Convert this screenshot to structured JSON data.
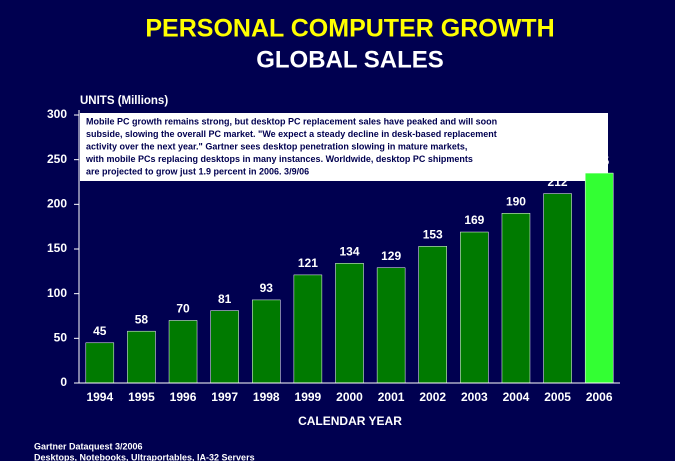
{
  "chart_data": {
    "type": "bar",
    "title": "PERSONAL COMPUTER GROWTH",
    "subtitle": "GLOBAL SALES",
    "y_label": "UNITS (Millions)",
    "x_label": "CALENDAR YEAR",
    "note_lines": [
      "Mobile PC growth remains strong, but desktop PC replacement sales have peaked and will soon",
      "subside, slowing the overall PC market. \"We expect a steady decline in desk-based replacement",
      "activity over the next year.\"  Gartner sees desktop penetration slowing in mature markets,",
      "with mobile PCs replacing desktops in many instances. Worldwide, desktop PC shipments",
      "are projected to grow just 1.9 percent in 2006.  3/9/06"
    ],
    "footer_lines": [
      "Gartner Dataquest 3/2006",
      "Desktops, Notebooks, Ultraportables, IA-32 Servers"
    ],
    "categories": [
      "1994",
      "1995",
      "1996",
      "1997",
      "1998",
      "1999",
      "2000",
      "2001",
      "2002",
      "2003",
      "2004",
      "2005",
      "2006"
    ],
    "values": [
      45,
      58,
      70,
      81,
      93,
      121,
      134,
      129,
      153,
      169,
      190,
      212,
      235
    ],
    "colors": [
      "#007a00",
      "#007a00",
      "#007a00",
      "#007a00",
      "#007a00",
      "#007a00",
      "#007a00",
      "#007a00",
      "#007a00",
      "#007a00",
      "#007a00",
      "#007a00",
      "#33ff33"
    ],
    "ylim": [
      0,
      300
    ],
    "yticks": [
      0,
      50,
      100,
      150,
      200,
      250,
      300
    ],
    "grid": false
  }
}
